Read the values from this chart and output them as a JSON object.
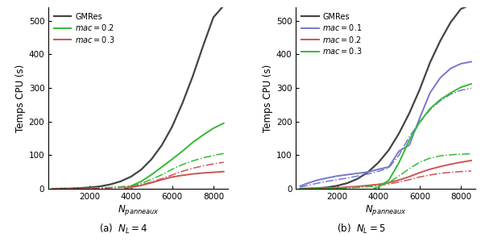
{
  "ylabel": "Temps CPU (s)",
  "xlabel": "$N_{panneaux}$",
  "ylim": [
    0,
    540
  ],
  "xlim": [
    0,
    8700
  ],
  "yticks": [
    0,
    100,
    200,
    300,
    400,
    500
  ],
  "xticks": [
    2000,
    4000,
    6000,
    8000
  ],
  "panel_a": {
    "gmres": {
      "x": [
        200,
        500,
        1000,
        1500,
        2000,
        2500,
        3000,
        3500,
        4000,
        4500,
        5000,
        5500,
        6000,
        6500,
        7000,
        7500,
        8000,
        8500
      ],
      "y": [
        0.1,
        0.3,
        0.8,
        2,
        4,
        7,
        13,
        22,
        36,
        57,
        88,
        130,
        185,
        255,
        335,
        425,
        510,
        545
      ],
      "color": "#444444",
      "linestyle": "-",
      "linewidth": 1.6,
      "label": "GMRes"
    },
    "mac02_solid": {
      "x": [
        3700,
        4000,
        4500,
        5000,
        5500,
        6000,
        6500,
        7000,
        7500,
        8000,
        8500
      ],
      "y": [
        2,
        8,
        22,
        42,
        65,
        88,
        112,
        138,
        160,
        180,
        195
      ],
      "color": "#33bb33",
      "linestyle": "-",
      "linewidth": 1.4,
      "label": "$mac = 0.2$"
    },
    "mac02_dash": {
      "x": [
        200,
        500,
        1000,
        1500,
        2000,
        2500,
        3000,
        3500,
        4000,
        4500,
        5000,
        5500,
        6000,
        6500,
        7000,
        7500,
        8000,
        8500
      ],
      "y": [
        0.1,
        0.2,
        0.5,
        0.9,
        1.5,
        2.5,
        4,
        6,
        9,
        16,
        28,
        42,
        58,
        72,
        83,
        92,
        99,
        105
      ],
      "color": "#33bb33",
      "linestyle": "-.",
      "linewidth": 1.1
    },
    "mac03_solid": {
      "x": [
        3700,
        4000,
        4500,
        5000,
        5500,
        6000,
        6500,
        7000,
        7500,
        8000,
        8500
      ],
      "y": [
        1,
        4,
        10,
        18,
        27,
        35,
        40,
        44,
        47,
        49,
        51
      ],
      "color": "#cc5555",
      "linestyle": "-",
      "linewidth": 1.4,
      "label": "$mac = 0.3$"
    },
    "mac03_dash": {
      "x": [
        200,
        500,
        1000,
        1500,
        2000,
        2500,
        3000,
        3500,
        4000,
        4500,
        5000,
        5500,
        6000,
        6500,
        7000,
        7500,
        8000,
        8500
      ],
      "y": [
        0.05,
        0.1,
        0.3,
        0.5,
        0.9,
        1.5,
        2.5,
        4,
        6.5,
        12,
        20,
        30,
        41,
        52,
        61,
        68,
        74,
        79
      ],
      "color": "#cc5555",
      "linestyle": "-.",
      "linewidth": 1.1
    }
  },
  "panel_b": {
    "gmres": {
      "x": [
        200,
        500,
        1000,
        1500,
        2000,
        2500,
        3000,
        3500,
        4000,
        4500,
        5000,
        5500,
        6000,
        6500,
        7000,
        7500,
        8000,
        8500
      ],
      "y": [
        0.2,
        0.5,
        1.5,
        4,
        9,
        17,
        30,
        50,
        78,
        115,
        165,
        225,
        295,
        375,
        440,
        495,
        535,
        548
      ],
      "color": "#444444",
      "linestyle": "-",
      "linewidth": 1.6,
      "label": "GMRes"
    },
    "mac01_solid": {
      "x": [
        200,
        500,
        1000,
        1500,
        2000,
        2500,
        3000,
        3500,
        4000,
        4500,
        5000,
        5500,
        6000,
        6500,
        7000,
        7500,
        8000,
        8500
      ],
      "y": [
        8,
        15,
        25,
        32,
        38,
        42,
        46,
        50,
        58,
        65,
        112,
        130,
        210,
        285,
        330,
        358,
        372,
        378
      ],
      "color": "#7777cc",
      "linestyle": "-",
      "linewidth": 1.4,
      "label": "$mac = 0.1$"
    },
    "mac01_dash": {
      "x": [
        200,
        500,
        1000,
        1500,
        2000,
        2500,
        3000,
        3500,
        4000,
        4500,
        5000,
        5500,
        6000,
        6500,
        7000,
        7500,
        8000,
        8500
      ],
      "y": [
        5,
        9,
        16,
        22,
        27,
        32,
        38,
        44,
        52,
        62,
        100,
        155,
        198,
        235,
        262,
        281,
        293,
        299
      ],
      "color": "#7777cc",
      "linestyle": "-.",
      "linewidth": 1.1
    },
    "mac02_solid": {
      "x": [
        200,
        500,
        1000,
        1500,
        2000,
        2500,
        3000,
        3500,
        4000,
        4500,
        5000,
        5500,
        6000,
        6500,
        7000,
        7500,
        8000,
        8500
      ],
      "y": [
        0.3,
        0.6,
        1.2,
        2,
        3,
        5,
        7,
        10,
        13,
        18,
        26,
        36,
        48,
        58,
        66,
        73,
        79,
        84
      ],
      "color": "#cc5555",
      "linestyle": "-",
      "linewidth": 1.4,
      "label": "$mac = 0.2$"
    },
    "mac02_dash": {
      "x": [
        200,
        500,
        1000,
        1500,
        2000,
        2500,
        3000,
        3500,
        4000,
        4500,
        5000,
        5500,
        6000,
        6500,
        7000,
        7500,
        8000,
        8500
      ],
      "y": [
        0.2,
        0.4,
        0.8,
        1.4,
        2,
        3,
        5,
        7,
        10,
        14,
        20,
        27,
        35,
        41,
        46,
        49,
        51,
        53
      ],
      "color": "#cc5555",
      "linestyle": "-.",
      "linewidth": 1.1
    },
    "mac03_solid": {
      "x": [
        3800,
        4000,
        4500,
        5000,
        5500,
        6000,
        6500,
        7000,
        7500,
        8000,
        8500
      ],
      "y": [
        2,
        5,
        25,
        78,
        145,
        198,
        238,
        265,
        285,
        302,
        312
      ],
      "color": "#33bb33",
      "linestyle": "-",
      "linewidth": 1.4,
      "label": "$mac = 0.3$"
    },
    "mac03_dash": {
      "x": [
        200,
        500,
        1000,
        1500,
        2000,
        2500,
        3000,
        3500,
        4000,
        4500,
        5000,
        5500,
        6000,
        6500,
        7000,
        7500,
        8000,
        8500
      ],
      "y": [
        0.1,
        0.2,
        0.5,
        0.9,
        1.5,
        2.5,
        4,
        6,
        9,
        18,
        38,
        60,
        79,
        91,
        98,
        101,
        103,
        104
      ],
      "color": "#33bb33",
      "linestyle": "-.",
      "linewidth": 1.1
    }
  },
  "legend_a": [
    "gmres",
    "mac02_solid",
    "mac03_solid"
  ],
  "legend_b": [
    "gmres",
    "mac01_solid",
    "mac02_solid",
    "mac03_solid"
  ],
  "caption_a": "(a)  $N_L = 4$",
  "caption_b": "(b)  $N_L = 5$"
}
